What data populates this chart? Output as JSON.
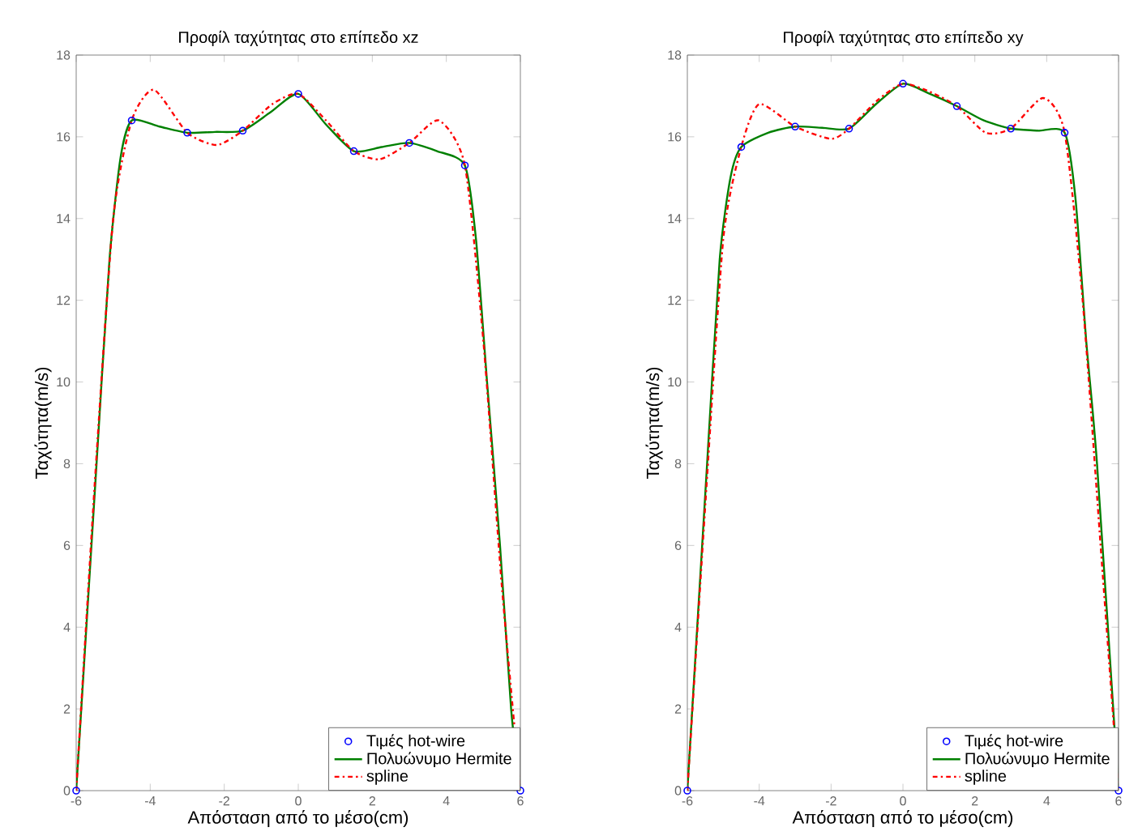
{
  "chart_data": [
    {
      "type": "line",
      "title": "Προφίλ ταχύτητας στο επίπεδο xz",
      "xlabel": "Απόσταση από το μέσο(cm)",
      "ylabel": "Ταχύτητα(m/s)",
      "xlim": [
        -6,
        6
      ],
      "ylim": [
        0,
        18
      ],
      "xticks": [
        -6,
        -4,
        -2,
        0,
        2,
        4,
        6
      ],
      "yticks": [
        0,
        2,
        4,
        6,
        8,
        10,
        12,
        14,
        16,
        18
      ],
      "grid": false,
      "legend": "bottom right",
      "series": [
        {
          "name": "Τιμές hot-wire",
          "type": "scatter",
          "marker": "circle",
          "color": "#0000ff",
          "x": [
            -6,
            -4.5,
            -3,
            -1.5,
            0,
            1.5,
            3,
            4.5,
            6
          ],
          "values": [
            0,
            16.4,
            16.1,
            16.15,
            17.05,
            15.65,
            15.85,
            15.3,
            0
          ]
        },
        {
          "name": "Πολυώνυμο Hermite",
          "line_style": "solid",
          "color": "#008000",
          "x": [
            -6,
            -5.45,
            -5.1,
            -4.8,
            -4.5,
            -3.75,
            -3,
            -2.25,
            -1.5,
            -0.75,
            0,
            0.75,
            1.5,
            2.25,
            3,
            3.75,
            4.5,
            4.8,
            5.1,
            5.45,
            5.75,
            6
          ],
          "values": [
            0,
            8,
            13,
            15.5,
            16.4,
            16.25,
            16.1,
            16.12,
            16.15,
            16.6,
            17.05,
            16.3,
            15.65,
            15.75,
            15.85,
            15.65,
            15.3,
            13.5,
            10,
            6,
            2,
            0
          ]
        },
        {
          "name": "spline",
          "line_style": "dashdot",
          "color": "#ff0000",
          "x": [
            -6,
            -5.5,
            -5,
            -4.5,
            -3.9,
            -3,
            -2.2,
            -1.5,
            -0.7,
            0,
            0.75,
            1.5,
            2.2,
            3,
            3.8,
            4.5,
            5,
            5.5,
            6
          ],
          "values": [
            0,
            7.5,
            14,
            16.4,
            17.15,
            16.1,
            15.8,
            16.15,
            16.8,
            17.05,
            16.4,
            15.65,
            15.45,
            15.85,
            16.4,
            15.3,
            11,
            5,
            0
          ]
        }
      ]
    },
    {
      "type": "line",
      "title": "Προφίλ ταχύτητας στο επίπεδο xy",
      "xlabel": "Απόσταση από το μέσο(cm)",
      "ylabel": "Ταχύτητα(m/s)",
      "xlim": [
        -6,
        6
      ],
      "ylim": [
        0,
        18
      ],
      "xticks": [
        -6,
        -4,
        -2,
        0,
        2,
        4,
        6
      ],
      "yticks": [
        0,
        2,
        4,
        6,
        8,
        10,
        12,
        14,
        16,
        18
      ],
      "grid": false,
      "legend": "bottom right",
      "series": [
        {
          "name": "Τιμές hot-wire",
          "type": "scatter",
          "marker": "circle",
          "color": "#0000ff",
          "x": [
            -6,
            -4.5,
            -3,
            -1.5,
            0,
            1.5,
            3,
            4.5,
            6
          ],
          "values": [
            0,
            15.75,
            16.25,
            16.2,
            17.3,
            16.75,
            16.2,
            16.1,
            0
          ]
        },
        {
          "name": "Πολυώνυμο Hermite",
          "line_style": "solid",
          "color": "#008000",
          "x": [
            -6,
            -5.45,
            -5.1,
            -4.8,
            -4.5,
            -3.75,
            -3,
            -2.25,
            -1.5,
            -0.75,
            0,
            0.75,
            1.5,
            2.25,
            3,
            3.75,
            4.5,
            4.8,
            5.1,
            5.4,
            6
          ],
          "values": [
            0,
            8,
            13,
            15,
            15.75,
            16.1,
            16.25,
            16.22,
            16.2,
            16.8,
            17.3,
            17.05,
            16.75,
            16.4,
            16.2,
            16.15,
            16.1,
            14.5,
            11,
            8,
            0
          ]
        },
        {
          "name": "spline",
          "line_style": "dashdot",
          "color": "#ff0000",
          "x": [
            -6,
            -5.5,
            -5,
            -4.5,
            -4,
            -3,
            -2,
            -1.5,
            -0.7,
            0,
            0.75,
            1.5,
            2.3,
            3,
            3.9,
            4.5,
            5,
            5.5,
            6
          ],
          "values": [
            0,
            7,
            13.5,
            15.75,
            16.8,
            16.25,
            15.95,
            16.2,
            16.9,
            17.3,
            17.1,
            16.75,
            16.1,
            16.2,
            16.95,
            16.1,
            12,
            6,
            0
          ]
        }
      ]
    }
  ]
}
